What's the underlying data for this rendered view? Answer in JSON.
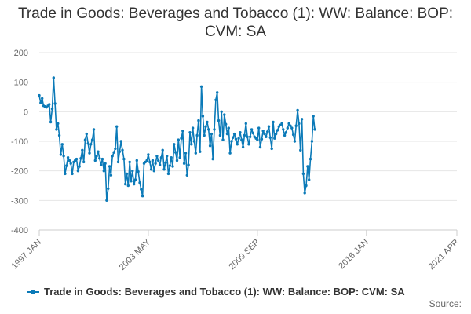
{
  "chart_data": {
    "type": "line",
    "title": "Trade in Goods: Beverages and Tobacco (1): WW: Balance: BOP: CVM: SA",
    "xlabel": "",
    "ylabel": "",
    "ylim": [
      -400,
      200
    ],
    "yticks": [
      -400,
      -300,
      -200,
      -100,
      0,
      100,
      200
    ],
    "xticks": [
      {
        "label": "1997 JAN",
        "index": 0
      },
      {
        "label": "2003 MAY",
        "index": 76
      },
      {
        "label": "2009 SEP",
        "index": 152
      },
      {
        "label": "2016 JAN",
        "index": 228
      },
      {
        "label": "2021 APR",
        "index": 291
      }
    ],
    "grid": true,
    "legend_position": "bottom",
    "source_label": "Source:",
    "series": [
      {
        "name": "Trade in Goods: Beverages and Tobacco (1): WW: Balance: BOP: CVM: SA",
        "color": "#0b7ab8",
        "anchors": [
          [
            0,
            55
          ],
          [
            1,
            30
          ],
          [
            2,
            45
          ],
          [
            3,
            20
          ],
          [
            5,
            15
          ],
          [
            7,
            25
          ],
          [
            8,
            -35
          ],
          [
            9,
            10
          ],
          [
            10,
            115
          ],
          [
            12,
            -60
          ],
          [
            13,
            -40
          ],
          [
            14,
            -80
          ],
          [
            15,
            -145
          ],
          [
            16,
            -110
          ],
          [
            17,
            -150
          ],
          [
            18,
            -210
          ],
          [
            20,
            -155
          ],
          [
            22,
            -175
          ],
          [
            23,
            -210
          ],
          [
            24,
            -170
          ],
          [
            26,
            -160
          ],
          [
            27,
            -200
          ],
          [
            28,
            -185
          ],
          [
            30,
            -130
          ],
          [
            31,
            -170
          ],
          [
            32,
            -95
          ],
          [
            33,
            -75
          ],
          [
            35,
            -140
          ],
          [
            36,
            -110
          ],
          [
            37,
            -95
          ],
          [
            38,
            -60
          ],
          [
            39,
            -165
          ],
          [
            41,
            -135
          ],
          [
            43,
            -180
          ],
          [
            44,
            -160
          ],
          [
            45,
            -200
          ],
          [
            46,
            -175
          ],
          [
            47,
            -300
          ],
          [
            48,
            -260
          ],
          [
            49,
            -185
          ],
          [
            50,
            -215
          ],
          [
            51,
            -150
          ],
          [
            53,
            -125
          ],
          [
            54,
            -50
          ],
          [
            55,
            -170
          ],
          [
            57,
            -100
          ],
          [
            59,
            -160
          ],
          [
            60,
            -245
          ],
          [
            61,
            -210
          ],
          [
            62,
            -250
          ],
          [
            63,
            -170
          ],
          [
            64,
            -235
          ],
          [
            65,
            -200
          ],
          [
            66,
            -245
          ],
          [
            67,
            -230
          ],
          [
            68,
            -165
          ],
          [
            70,
            -240
          ],
          [
            72,
            -285
          ],
          [
            73,
            -175
          ],
          [
            75,
            -165
          ],
          [
            76,
            -145
          ],
          [
            78,
            -195
          ],
          [
            79,
            -165
          ],
          [
            80,
            -200
          ],
          [
            82,
            -150
          ],
          [
            84,
            -180
          ],
          [
            86,
            -130
          ],
          [
            87,
            -195
          ],
          [
            89,
            -150
          ],
          [
            90,
            -210
          ],
          [
            92,
            -155
          ],
          [
            93,
            -185
          ],
          [
            94,
            -110
          ],
          [
            96,
            -165
          ],
          [
            97,
            -95
          ],
          [
            98,
            -155
          ],
          [
            99,
            -90
          ],
          [
            100,
            -65
          ],
          [
            101,
            -175
          ],
          [
            102,
            -140
          ],
          [
            103,
            -215
          ],
          [
            104,
            -180
          ],
          [
            105,
            -70
          ],
          [
            106,
            -110
          ],
          [
            107,
            -55
          ],
          [
            108,
            -100
          ],
          [
            109,
            -140
          ],
          [
            110,
            -80
          ],
          [
            111,
            -30
          ],
          [
            112,
            -135
          ],
          [
            113,
            85
          ],
          [
            114,
            -15
          ],
          [
            115,
            -80
          ],
          [
            116,
            -50
          ],
          [
            117,
            -35
          ],
          [
            118,
            -60
          ],
          [
            119,
            -115
          ],
          [
            120,
            -75
          ],
          [
            121,
            -160
          ],
          [
            123,
            40
          ],
          [
            124,
            65
          ],
          [
            125,
            -30
          ],
          [
            126,
            -80
          ],
          [
            127,
            0
          ],
          [
            128,
            -95
          ],
          [
            129,
            -10
          ],
          [
            131,
            -75
          ],
          [
            132,
            -55
          ],
          [
            133,
            -140
          ],
          [
            134,
            -100
          ],
          [
            136,
            -75
          ],
          [
            138,
            -110
          ],
          [
            140,
            -70
          ],
          [
            142,
            -120
          ],
          [
            144,
            -40
          ],
          [
            145,
            -85
          ],
          [
            146,
            -110
          ],
          [
            148,
            -60
          ],
          [
            150,
            -85
          ],
          [
            152,
            -95
          ],
          [
            153,
            -55
          ],
          [
            154,
            -120
          ],
          [
            156,
            -65
          ],
          [
            158,
            -85
          ],
          [
            160,
            -50
          ],
          [
            162,
            -125
          ],
          [
            163,
            -35
          ],
          [
            164,
            -90
          ],
          [
            165,
            -75
          ],
          [
            167,
            -50
          ],
          [
            169,
            -40
          ],
          [
            171,
            -80
          ],
          [
            172,
            -70
          ],
          [
            174,
            -40
          ],
          [
            176,
            -55
          ],
          [
            178,
            -100
          ],
          [
            180,
            5
          ],
          [
            181,
            -40
          ],
          [
            182,
            -130
          ],
          [
            183,
            -25
          ],
          [
            184,
            -210
          ],
          [
            185,
            -275
          ],
          [
            186,
            -250
          ],
          [
            187,
            -185
          ],
          [
            188,
            -230
          ],
          [
            189,
            -160
          ],
          [
            190,
            -100
          ],
          [
            191,
            -15
          ],
          [
            192,
            -60
          ]
        ]
      }
    ]
  }
}
